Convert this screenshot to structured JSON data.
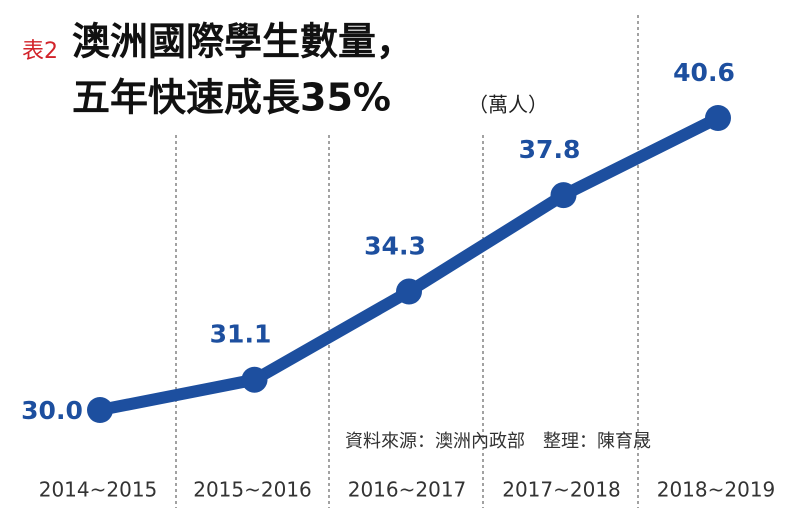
{
  "chart_data": {
    "type": "line",
    "label": "表2",
    "title": "澳洲國際學生數量，",
    "subtitle": "五年快速成長35%",
    "unit": "（萬人）",
    "source": "資料來源：澳洲內政部　整理：陳育晟",
    "categories": [
      "2014~2015",
      "2015~2016",
      "2016~2017",
      "2017~2018",
      "2018~2019"
    ],
    "values": [
      30.0,
      31.1,
      34.3,
      37.8,
      40.6
    ],
    "value_labels": [
      "30.0",
      "31.1",
      "34.3",
      "37.8",
      "40.6"
    ],
    "color": "#1d4f9f"
  }
}
